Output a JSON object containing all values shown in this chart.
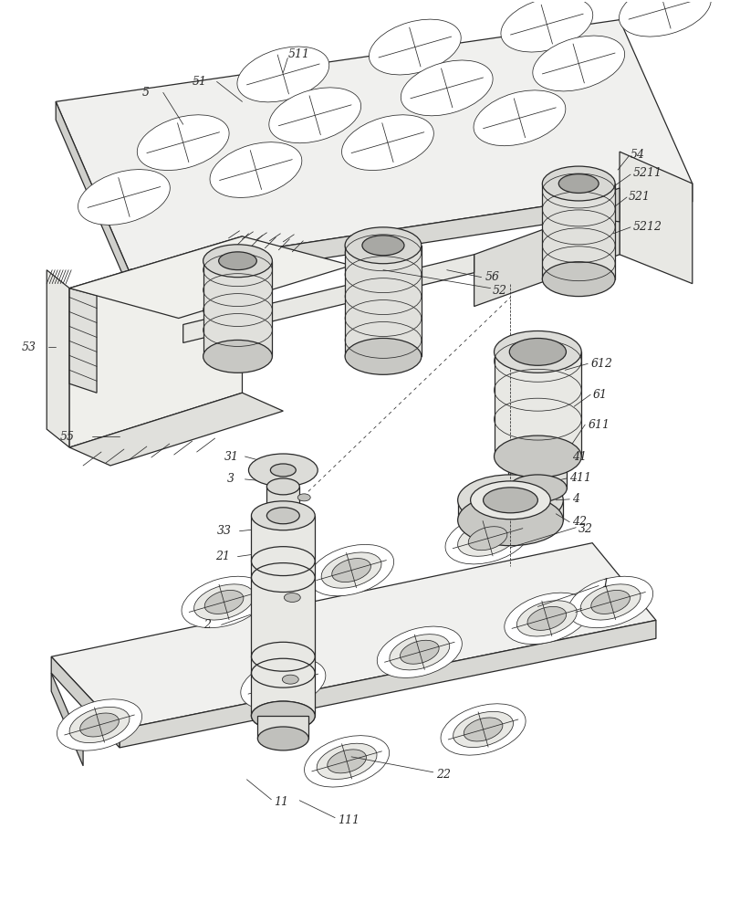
{
  "bg_color": "#ffffff",
  "line_color": "#2a2a2a",
  "fig_width": 8.12,
  "fig_height": 10.0,
  "dpi": 100,
  "label_fontsize": 9,
  "lw_main": 0.9,
  "lw_thin": 0.55,
  "lw_leader": 0.55
}
